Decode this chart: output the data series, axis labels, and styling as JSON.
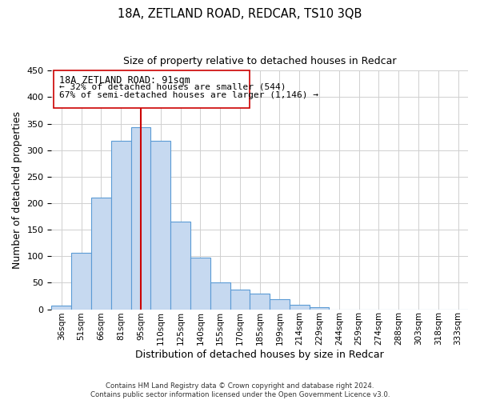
{
  "title": "18A, ZETLAND ROAD, REDCAR, TS10 3QB",
  "subtitle": "Size of property relative to detached houses in Redcar",
  "xlabel": "Distribution of detached houses by size in Redcar",
  "ylabel": "Number of detached properties",
  "bar_labels": [
    "36sqm",
    "51sqm",
    "66sqm",
    "81sqm",
    "95sqm",
    "110sqm",
    "125sqm",
    "140sqm",
    "155sqm",
    "170sqm",
    "185sqm",
    "199sqm",
    "214sqm",
    "229sqm",
    "244sqm",
    "259sqm",
    "274sqm",
    "288sqm",
    "303sqm",
    "318sqm",
    "333sqm"
  ],
  "bar_values": [
    7,
    106,
    210,
    317,
    343,
    318,
    165,
    98,
    50,
    37,
    30,
    19,
    9,
    4,
    0,
    0,
    0,
    0,
    0,
    0,
    0
  ],
  "bar_color": "#c6d9f0",
  "bar_edge_color": "#5b9bd5",
  "vline_x": 4,
  "vline_color": "#cc0000",
  "ylim": [
    0,
    450
  ],
  "yticks": [
    0,
    50,
    100,
    150,
    200,
    250,
    300,
    350,
    400,
    450
  ],
  "annotation_title": "18A ZETLAND ROAD: 91sqm",
  "annotation_line1": "← 32% of detached houses are smaller (544)",
  "annotation_line2": "67% of semi-detached houses are larger (1,146) →",
  "footer_line1": "Contains HM Land Registry data © Crown copyright and database right 2024.",
  "footer_line2": "Contains public sector information licensed under the Open Government Licence v3.0."
}
